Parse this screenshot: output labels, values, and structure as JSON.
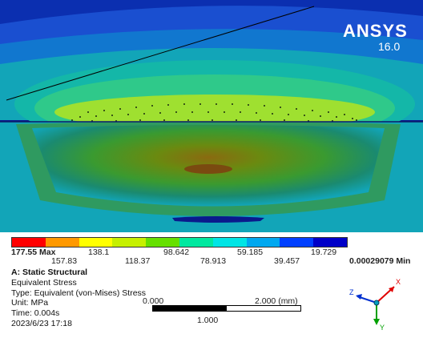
{
  "brand": {
    "name": "ANSYS",
    "version": "16.0"
  },
  "legend": {
    "max_label": "177.55 Max",
    "min_label": "0.00029079 Min",
    "top_values": [
      "138.1",
      "98.642",
      "59.185",
      "19.729"
    ],
    "bottom_values": [
      "157.83",
      "118.37",
      "78.913",
      "39.457"
    ],
    "colors": [
      "#ff0000",
      "#ff9900",
      "#ffff00",
      "#c6f000",
      "#66e000",
      "#00e8a0",
      "#00e5e5",
      "#00a8f0",
      "#0040ff",
      "#0000c8"
    ]
  },
  "info": {
    "title": "A: Static Structural",
    "result": "Equivalent Stress",
    "type": "Type: Equivalent (von-Mises) Stress",
    "unit": "Unit: MPa",
    "time": "Time: 0.004s",
    "date": "2023/6/23 17:18"
  },
  "scale": {
    "start": "0.000",
    "mid": "1.000",
    "end": "2.000 (mm)"
  },
  "triad": {
    "x": "X",
    "y": "Y",
    "z": "Z"
  },
  "colors": {
    "dark_blue": "#0a1a8c",
    "mid_blue": "#1a4fd0",
    "teal": "#12a5b8",
    "green": "#2fc98a",
    "yellow_green": "#9fe030",
    "olive": "#6a8a10"
  }
}
